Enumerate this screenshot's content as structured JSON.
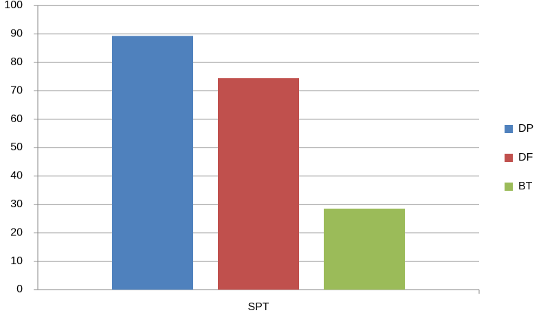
{
  "chart_data": {
    "type": "bar",
    "categories": [
      "SPT"
    ],
    "series": [
      {
        "name": "DP",
        "color": "#4f81bd",
        "values": [
          89.3
        ]
      },
      {
        "name": "DF",
        "color": "#c0504d",
        "values": [
          74.4
        ]
      },
      {
        "name": "BT",
        "color": "#9bbb59",
        "values": [
          28.5
        ]
      }
    ],
    "ylim": [
      0,
      100
    ],
    "yticks": [
      0,
      10,
      20,
      30,
      40,
      50,
      60,
      70,
      80,
      90,
      100
    ],
    "grid": true,
    "legend": "right"
  }
}
